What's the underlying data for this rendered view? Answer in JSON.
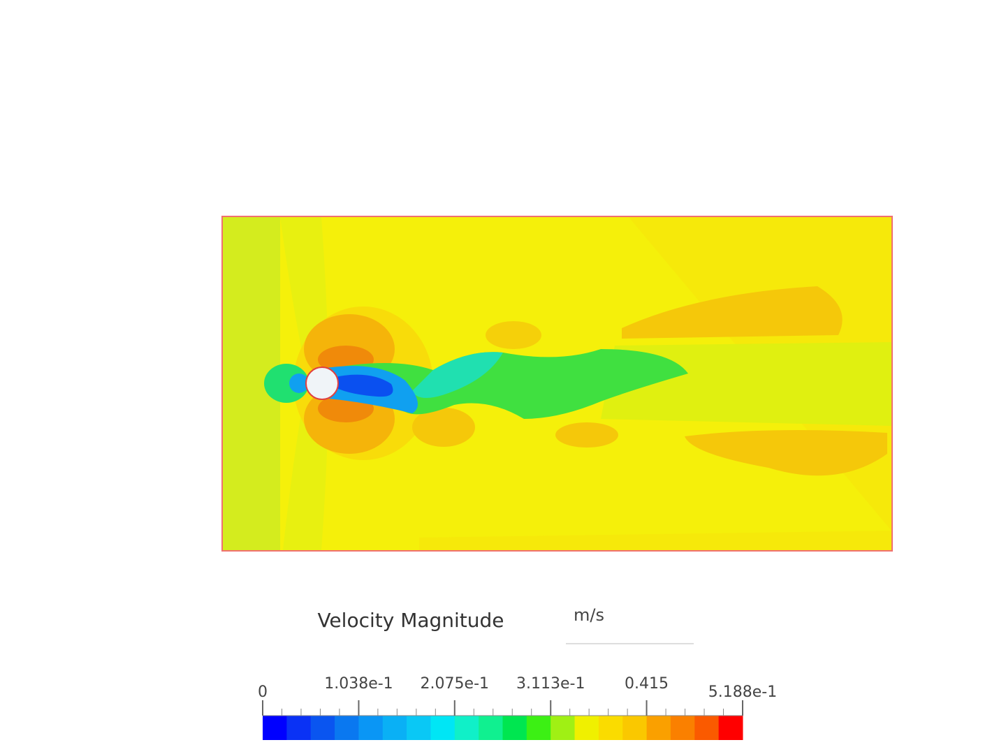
{
  "legend": {
    "title": "Velocity Magnitude",
    "unit": "m/s",
    "range": [
      0,
      0.5188
    ],
    "ticks": [
      0,
      {
        "value": 0.1038,
        "label": "1.038e-1"
      },
      {
        "value": 0.2075,
        "label": "2.075e-1"
      },
      {
        "value": 0.3113,
        "label": "3.113e-1"
      },
      0.415,
      {
        "value": 0.5188,
        "label": "5.188e-1"
      }
    ],
    "colors": [
      "#0000ff",
      "#0a32f5",
      "#0a55f0",
      "#0a78f0",
      "#0a96f5",
      "#0ab0f5",
      "#0ac8f5",
      "#00e6f5",
      "#10f0c8",
      "#10f090",
      "#00e650",
      "#3cf014",
      "#a0f014",
      "#f0f000",
      "#fadc00",
      "#fac800",
      "#faa000",
      "#fa8000",
      "#fa5a00",
      "#ff0000"
    ]
  }
}
